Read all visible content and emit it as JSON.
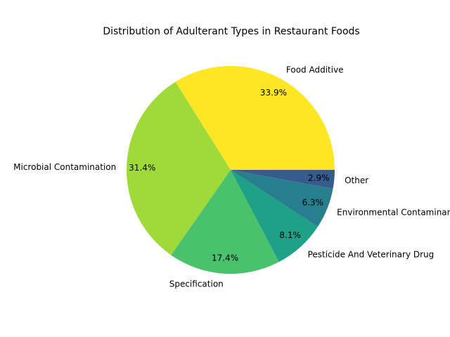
{
  "chart_data": {
    "type": "pie",
    "title": "Distribution of Adulterant Types in Restaurant Foods",
    "categories": [
      "Food Additive",
      "Microbial Contamination",
      "Specification",
      "Pesticide And Veterinary Drug",
      "Environmental Contaminant",
      "Other"
    ],
    "values": [
      33.9,
      31.4,
      17.4,
      8.1,
      6.3,
      2.9
    ],
    "percent_labels": [
      "33.9%",
      "31.4%",
      "17.4%",
      "8.1%",
      "6.3%",
      "2.9%"
    ],
    "colors": [
      "#fde725",
      "#9fda3a",
      "#4ac16d",
      "#1fa187",
      "#277f8e",
      "#365c8d"
    ],
    "start_angle_deg": 0,
    "direction": "counterclockwise",
    "legend": "none"
  }
}
